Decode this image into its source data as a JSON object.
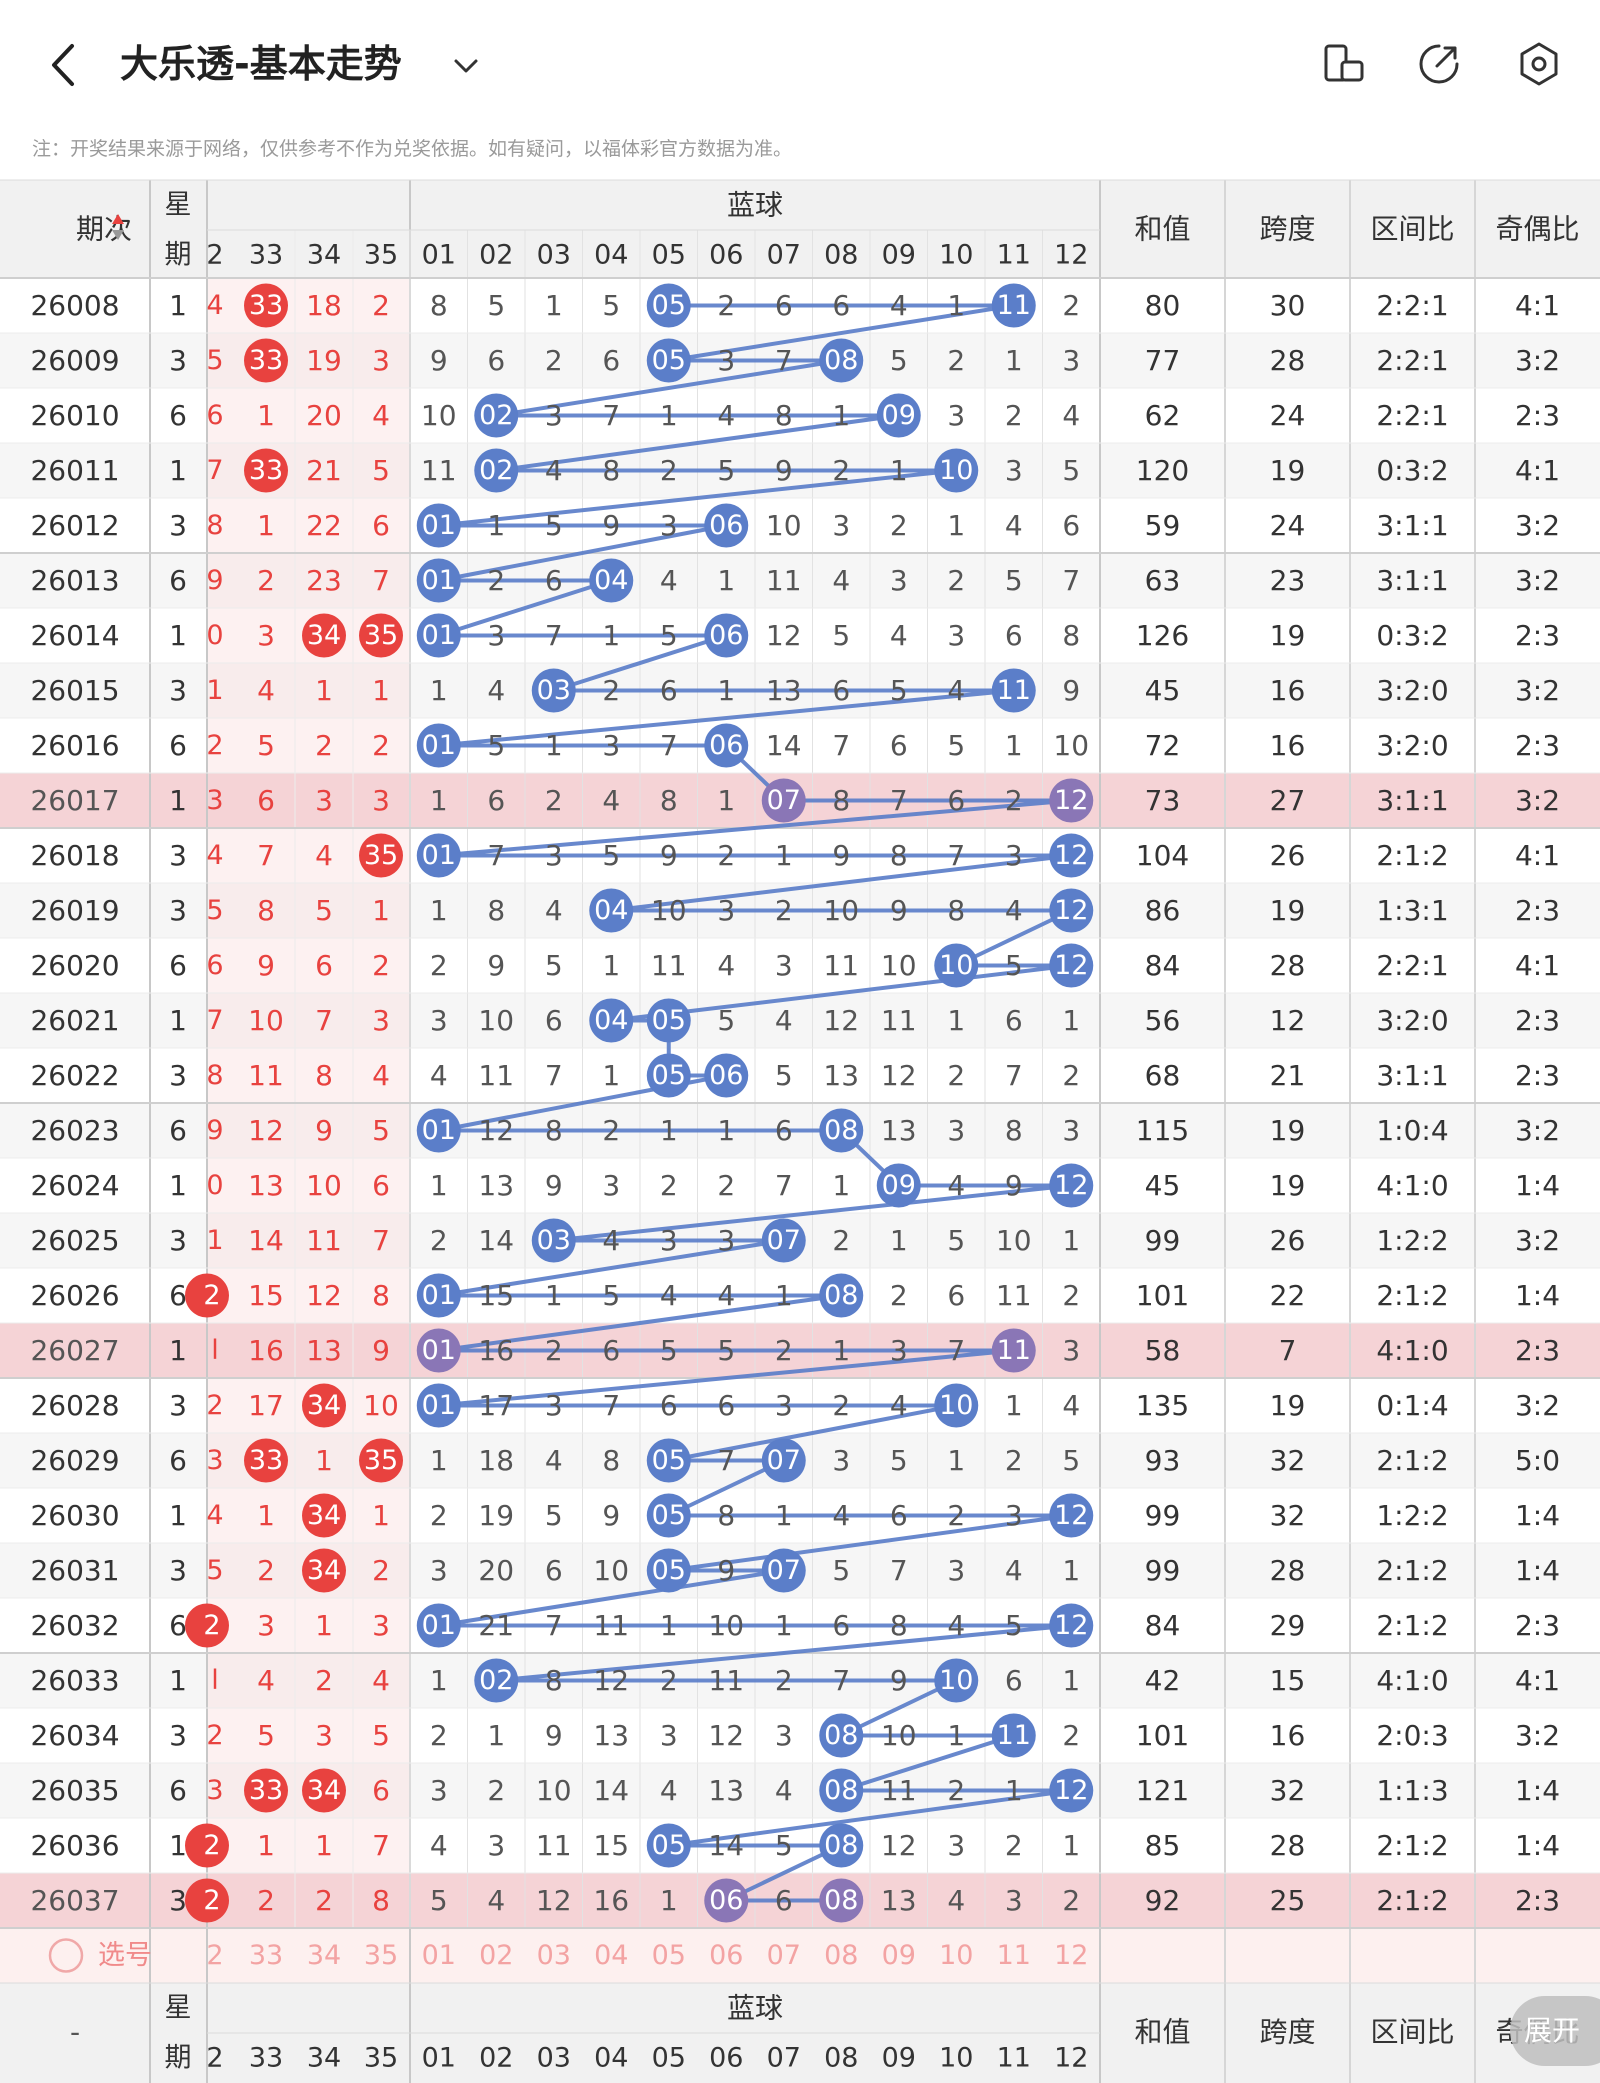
{
  "header": {
    "title": "大乐透-基本走势",
    "back_icon": "chevron-left-icon",
    "dropdown_icon": "chevron-down-icon",
    "icons": [
      "phone-rotate-icon",
      "share-icon",
      "settings-icon"
    ]
  },
  "note": "注：开奖结果来源于网络，仅供参考不作为兑奖依据。如有疑问，以福体彩官方数据为准。",
  "columns": {
    "period": "期次",
    "week_top": "星",
    "week_bottom": "期",
    "blue_title": "蓝球",
    "front_partial": "2",
    "front_nums": [
      "33",
      "34",
      "35"
    ],
    "blue_nums": [
      "01",
      "02",
      "03",
      "04",
      "05",
      "06",
      "07",
      "08",
      "09",
      "10",
      "11",
      "12"
    ],
    "stats": [
      "和值",
      "跨度",
      "区间比",
      "奇偶比"
    ]
  },
  "footer": {
    "select_label": "选号",
    "dash": "-",
    "expand_label": "展开"
  },
  "colors": {
    "red": "#e8423f",
    "blue": "#5b7ec9",
    "highlight_row": "#f5d3d6",
    "header_bg": "#f1f1f1"
  },
  "rows": [
    {
      "period": "26008",
      "week": "1",
      "partial": "4",
      "front": [
        "33",
        "18",
        "2"
      ],
      "hit": [
        true,
        false,
        false
      ],
      "blue": [
        "8",
        "5",
        "1",
        "5",
        "05",
        "2",
        "6",
        "6",
        "4",
        "1",
        "11",
        "2"
      ],
      "hits": [
        5,
        11
      ],
      "sum": "80",
      "span": "30",
      "zone": "2:2:1",
      "odd": "4:1"
    },
    {
      "period": "26009",
      "week": "3",
      "partial": "5",
      "front": [
        "33",
        "19",
        "3"
      ],
      "hit": [
        true,
        false,
        false
      ],
      "blue": [
        "9",
        "6",
        "2",
        "6",
        "05",
        "3",
        "7",
        "08",
        "5",
        "2",
        "1",
        "3"
      ],
      "hits": [
        5,
        8
      ],
      "sum": "77",
      "span": "28",
      "zone": "2:2:1",
      "odd": "3:2"
    },
    {
      "period": "26010",
      "week": "6",
      "partial": "6",
      "front": [
        "1",
        "20",
        "4"
      ],
      "hit": [
        false,
        false,
        false
      ],
      "blue": [
        "10",
        "02",
        "3",
        "7",
        "1",
        "4",
        "8",
        "1",
        "09",
        "3",
        "2",
        "4"
      ],
      "hits": [
        2,
        9
      ],
      "sum": "62",
      "span": "24",
      "zone": "2:2:1",
      "odd": "2:3"
    },
    {
      "period": "26011",
      "week": "1",
      "partial": "7",
      "front": [
        "33",
        "21",
        "5"
      ],
      "hit": [
        true,
        false,
        false
      ],
      "blue": [
        "11",
        "02",
        "4",
        "8",
        "2",
        "5",
        "9",
        "2",
        "1",
        "10",
        "3",
        "5"
      ],
      "hits": [
        2,
        10
      ],
      "sum": "120",
      "span": "19",
      "zone": "0:3:2",
      "odd": "4:1"
    },
    {
      "period": "26012",
      "week": "3",
      "partial": "8",
      "front": [
        "1",
        "22",
        "6"
      ],
      "hit": [
        false,
        false,
        false
      ],
      "blue": [
        "01",
        "1",
        "5",
        "9",
        "3",
        "06",
        "10",
        "3",
        "2",
        "1",
        "4",
        "6"
      ],
      "hits": [
        1,
        6
      ],
      "sum": "59",
      "span": "24",
      "zone": "3:1:1",
      "odd": "3:2"
    },
    {
      "period": "26013",
      "week": "6",
      "partial": "9",
      "front": [
        "2",
        "23",
        "7"
      ],
      "hit": [
        false,
        false,
        false
      ],
      "blue": [
        "01",
        "2",
        "6",
        "04",
        "4",
        "1",
        "11",
        "4",
        "3",
        "2",
        "5",
        "7"
      ],
      "hits": [
        1,
        4
      ],
      "sum": "63",
      "span": "23",
      "zone": "3:1:1",
      "odd": "3:2"
    },
    {
      "period": "26014",
      "week": "1",
      "partial": "0",
      "front": [
        "3",
        "34",
        "35"
      ],
      "hit": [
        false,
        true,
        true
      ],
      "blue": [
        "01",
        "3",
        "7",
        "1",
        "5",
        "06",
        "12",
        "5",
        "4",
        "3",
        "6",
        "8"
      ],
      "hits": [
        1,
        6
      ],
      "sum": "126",
      "span": "19",
      "zone": "0:3:2",
      "odd": "2:3"
    },
    {
      "period": "26015",
      "week": "3",
      "partial": "1",
      "front": [
        "4",
        "1",
        "1"
      ],
      "hit": [
        false,
        false,
        false
      ],
      "blue": [
        "1",
        "4",
        "03",
        "2",
        "6",
        "1",
        "13",
        "6",
        "5",
        "4",
        "11",
        "9"
      ],
      "hits": [
        3,
        11
      ],
      "sum": "45",
      "span": "16",
      "zone": "3:2:0",
      "odd": "3:2"
    },
    {
      "period": "26016",
      "week": "6",
      "partial": "2",
      "front": [
        "5",
        "2",
        "2"
      ],
      "hit": [
        false,
        false,
        false
      ],
      "blue": [
        "01",
        "5",
        "1",
        "3",
        "7",
        "06",
        "14",
        "7",
        "6",
        "5",
        "1",
        "10"
      ],
      "hits": [
        1,
        6
      ],
      "sum": "72",
      "span": "16",
      "zone": "3:2:0",
      "odd": "2:3"
    },
    {
      "period": "26017",
      "week": "1",
      "partial": "3",
      "front": [
        "6",
        "3",
        "3"
      ],
      "hit": [
        false,
        false,
        false
      ],
      "blue": [
        "1",
        "6",
        "2",
        "4",
        "8",
        "1",
        "07",
        "8",
        "7",
        "6",
        "2",
        "12"
      ],
      "hits": [
        7,
        12
      ],
      "sum": "73",
      "span": "27",
      "zone": "3:1:1",
      "odd": "3:2",
      "hl": true
    },
    {
      "period": "26018",
      "week": "3",
      "partial": "4",
      "front": [
        "7",
        "4",
        "35"
      ],
      "hit": [
        false,
        false,
        true
      ],
      "blue": [
        "01",
        "7",
        "3",
        "5",
        "9",
        "2",
        "1",
        "9",
        "8",
        "7",
        "3",
        "12"
      ],
      "hits": [
        1,
        12
      ],
      "sum": "104",
      "span": "26",
      "zone": "2:1:2",
      "odd": "4:1"
    },
    {
      "period": "26019",
      "week": "3",
      "partial": "5",
      "front": [
        "8",
        "5",
        "1"
      ],
      "hit": [
        false,
        false,
        false
      ],
      "blue": [
        "1",
        "8",
        "4",
        "04",
        "10",
        "3",
        "2",
        "10",
        "9",
        "8",
        "4",
        "12"
      ],
      "hits": [
        4,
        12
      ],
      "sum": "86",
      "span": "19",
      "zone": "1:3:1",
      "odd": "2:3"
    },
    {
      "period": "26020",
      "week": "6",
      "partial": "6",
      "front": [
        "9",
        "6",
        "2"
      ],
      "hit": [
        false,
        false,
        false
      ],
      "blue": [
        "2",
        "9",
        "5",
        "1",
        "11",
        "4",
        "3",
        "11",
        "10",
        "10",
        "5",
        "12"
      ],
      "hits": [
        10,
        12
      ],
      "sum": "84",
      "span": "28",
      "zone": "2:2:1",
      "odd": "4:1"
    },
    {
      "period": "26021",
      "week": "1",
      "partial": "7",
      "front": [
        "10",
        "7",
        "3"
      ],
      "hit": [
        false,
        false,
        false
      ],
      "blue": [
        "3",
        "10",
        "6",
        "04",
        "05",
        "5",
        "4",
        "12",
        "11",
        "1",
        "6",
        "1"
      ],
      "hits": [
        4,
        5
      ],
      "sum": "56",
      "span": "12",
      "zone": "3:2:0",
      "odd": "2:3"
    },
    {
      "period": "26022",
      "week": "3",
      "partial": "8",
      "front": [
        "11",
        "8",
        "4"
      ],
      "hit": [
        false,
        false,
        false
      ],
      "blue": [
        "4",
        "11",
        "7",
        "1",
        "05",
        "06",
        "5",
        "13",
        "12",
        "2",
        "7",
        "2"
      ],
      "hits": [
        5,
        6
      ],
      "sum": "68",
      "span": "21",
      "zone": "3:1:1",
      "odd": "2:3"
    },
    {
      "period": "26023",
      "week": "6",
      "partial": "9",
      "front": [
        "12",
        "9",
        "5"
      ],
      "hit": [
        false,
        false,
        false
      ],
      "blue": [
        "01",
        "12",
        "8",
        "2",
        "1",
        "1",
        "6",
        "08",
        "13",
        "3",
        "8",
        "3"
      ],
      "hits": [
        1,
        8
      ],
      "sum": "115",
      "span": "19",
      "zone": "1:0:4",
      "odd": "3:2"
    },
    {
      "period": "26024",
      "week": "1",
      "partial": "0",
      "front": [
        "13",
        "10",
        "6"
      ],
      "hit": [
        false,
        false,
        false
      ],
      "blue": [
        "1",
        "13",
        "9",
        "3",
        "2",
        "2",
        "7",
        "1",
        "09",
        "4",
        "9",
        "12"
      ],
      "hits": [
        9,
        12
      ],
      "sum": "45",
      "span": "19",
      "zone": "4:1:0",
      "odd": "1:4"
    },
    {
      "period": "26025",
      "week": "3",
      "partial": "1",
      "front": [
        "14",
        "11",
        "7"
      ],
      "hit": [
        false,
        false,
        false
      ],
      "blue": [
        "2",
        "14",
        "03",
        "4",
        "3",
        "3",
        "07",
        "2",
        "1",
        "5",
        "10",
        "1"
      ],
      "hits": [
        3,
        7
      ],
      "sum": "99",
      "span": "26",
      "zone": "1:2:2",
      "odd": "3:2"
    },
    {
      "period": "26026",
      "week": "6",
      "partial": "2",
      "front": [
        "15",
        "12",
        "8"
      ],
      "hit": [
        false,
        false,
        false
      ],
      "partialHit": true,
      "blue": [
        "01",
        "15",
        "1",
        "5",
        "4",
        "4",
        "1",
        "08",
        "2",
        "6",
        "11",
        "2"
      ],
      "hits": [
        1,
        8
      ],
      "sum": "101",
      "span": "22",
      "zone": "2:1:2",
      "odd": "1:4"
    },
    {
      "period": "26027",
      "week": "1",
      "partial": "l",
      "front": [
        "16",
        "13",
        "9"
      ],
      "hit": [
        false,
        false,
        false
      ],
      "blue": [
        "01",
        "16",
        "2",
        "6",
        "5",
        "5",
        "2",
        "1",
        "3",
        "7",
        "11",
        "3"
      ],
      "hits": [
        1,
        11
      ],
      "sum": "58",
      "span": "7",
      "zone": "4:1:0",
      "odd": "2:3",
      "hl": true
    },
    {
      "period": "26028",
      "week": "3",
      "partial": "2",
      "front": [
        "17",
        "34",
        "10"
      ],
      "hit": [
        false,
        true,
        false
      ],
      "blue": [
        "01",
        "17",
        "3",
        "7",
        "6",
        "6",
        "3",
        "2",
        "4",
        "10",
        "1",
        "4"
      ],
      "hits": [
        1,
        10
      ],
      "sum": "135",
      "span": "19",
      "zone": "0:1:4",
      "odd": "3:2"
    },
    {
      "period": "26029",
      "week": "6",
      "partial": "3",
      "front": [
        "33",
        "1",
        "35"
      ],
      "hit": [
        true,
        false,
        true
      ],
      "blue": [
        "1",
        "18",
        "4",
        "8",
        "05",
        "7",
        "07",
        "3",
        "5",
        "1",
        "2",
        "5"
      ],
      "hits": [
        5,
        7
      ],
      "sum": "93",
      "span": "32",
      "zone": "2:1:2",
      "odd": "5:0"
    },
    {
      "period": "26030",
      "week": "1",
      "partial": "4",
      "front": [
        "1",
        "34",
        "1"
      ],
      "hit": [
        false,
        true,
        false
      ],
      "blue": [
        "2",
        "19",
        "5",
        "9",
        "05",
        "8",
        "1",
        "4",
        "6",
        "2",
        "3",
        "12"
      ],
      "hits": [
        5,
        12
      ],
      "sum": "99",
      "span": "32",
      "zone": "1:2:2",
      "odd": "1:4"
    },
    {
      "period": "26031",
      "week": "3",
      "partial": "5",
      "front": [
        "2",
        "34",
        "2"
      ],
      "hit": [
        false,
        true,
        false
      ],
      "blue": [
        "3",
        "20",
        "6",
        "10",
        "05",
        "9",
        "07",
        "5",
        "7",
        "3",
        "4",
        "1"
      ],
      "hits": [
        5,
        7
      ],
      "sum": "99",
      "span": "28",
      "zone": "2:1:2",
      "odd": "1:4"
    },
    {
      "period": "26032",
      "week": "6",
      "partial": "2",
      "front": [
        "3",
        "1",
        "3"
      ],
      "hit": [
        false,
        false,
        false
      ],
      "partialHit": true,
      "blue": [
        "01",
        "21",
        "7",
        "11",
        "1",
        "10",
        "1",
        "6",
        "8",
        "4",
        "5",
        "12"
      ],
      "hits": [
        1,
        12
      ],
      "sum": "84",
      "span": "29",
      "zone": "2:1:2",
      "odd": "2:3"
    },
    {
      "period": "26033",
      "week": "1",
      "partial": "l",
      "front": [
        "4",
        "2",
        "4"
      ],
      "hit": [
        false,
        false,
        false
      ],
      "blue": [
        "1",
        "02",
        "8",
        "12",
        "2",
        "11",
        "2",
        "7",
        "9",
        "10",
        "6",
        "1"
      ],
      "hits": [
        2,
        10
      ],
      "sum": "42",
      "span": "15",
      "zone": "4:1:0",
      "odd": "4:1"
    },
    {
      "period": "26034",
      "week": "3",
      "partial": "2",
      "front": [
        "5",
        "3",
        "5"
      ],
      "hit": [
        false,
        false,
        false
      ],
      "blue": [
        "2",
        "1",
        "9",
        "13",
        "3",
        "12",
        "3",
        "08",
        "10",
        "1",
        "11",
        "2"
      ],
      "hits": [
        8,
        11
      ],
      "sum": "101",
      "span": "16",
      "zone": "2:0:3",
      "odd": "3:2"
    },
    {
      "period": "26035",
      "week": "6",
      "partial": "3",
      "front": [
        "33",
        "34",
        "6"
      ],
      "hit": [
        true,
        true,
        false
      ],
      "blue": [
        "3",
        "2",
        "10",
        "14",
        "4",
        "13",
        "4",
        "08",
        "11",
        "2",
        "1",
        "12"
      ],
      "hits": [
        8,
        12
      ],
      "sum": "121",
      "span": "32",
      "zone": "1:1:3",
      "odd": "1:4"
    },
    {
      "period": "26036",
      "week": "1",
      "partial": "2",
      "front": [
        "1",
        "1",
        "7"
      ],
      "hit": [
        false,
        false,
        false
      ],
      "partialHit": true,
      "blue": [
        "4",
        "3",
        "11",
        "15",
        "05",
        "14",
        "5",
        "08",
        "12",
        "3",
        "2",
        "1"
      ],
      "hits": [
        5,
        8
      ],
      "sum": "85",
      "span": "28",
      "zone": "2:1:2",
      "odd": "1:4"
    },
    {
      "period": "26037",
      "week": "3",
      "partial": "2",
      "front": [
        "2",
        "2",
        "8"
      ],
      "hit": [
        false,
        false,
        false
      ],
      "partialHit": true,
      "blue": [
        "5",
        "4",
        "12",
        "16",
        "1",
        "06",
        "6",
        "08",
        "13",
        "4",
        "3",
        "2"
      ],
      "hits": [
        6,
        8
      ],
      "sum": "92",
      "span": "25",
      "zone": "2:1:2",
      "odd": "2:3",
      "hl": true
    }
  ]
}
